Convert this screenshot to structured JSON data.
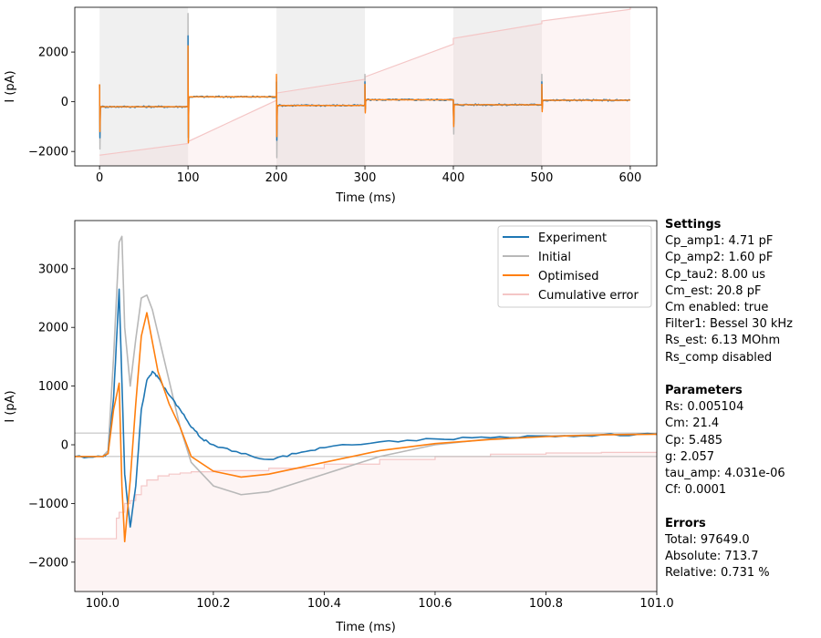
{
  "colors": {
    "experiment": "#1f77b4",
    "initial": "#b8b8b8",
    "optimised": "#ff7f0e",
    "error": "#f4c6c6",
    "shade": "#e6e6e6"
  },
  "top_chart": {
    "xlabel": "Time (ms)",
    "ylabel": "I (pA)",
    "xlim": [
      -28,
      630
    ],
    "ylim": [
      -2580,
      3800
    ],
    "xticks": [
      "0",
      "100",
      "200",
      "300",
      "400",
      "500",
      "600"
    ],
    "yticks": [
      "−2000",
      "0",
      "2000"
    ]
  },
  "bottom_chart": {
    "xlabel": "Time (ms)",
    "ylabel": "I (pA)",
    "xlim": [
      99.95,
      101.0
    ],
    "ylim": [
      -2500,
      3820
    ],
    "xticks": [
      "100.0",
      "100.2",
      "100.4",
      "100.6",
      "100.8",
      "101.0"
    ],
    "yticks": [
      "−2000",
      "−1000",
      "0",
      "1000",
      "2000",
      "3000"
    ],
    "legend": [
      "Experiment",
      "Initial",
      "Optimised",
      "Cumulative error"
    ]
  },
  "info": {
    "settings_title": "Settings",
    "settings": [
      "Cp_amp1: 4.71 pF",
      "Cp_amp2: 1.60 pF",
      "Cp_tau2: 8.00 us",
      "Cm_est: 20.8 pF",
      "Cm enabled: true",
      "Filter1: Bessel 30 kHz",
      "Rs_est: 6.13 MOhm",
      "Rs_comp disabled"
    ],
    "parameters_title": "Parameters",
    "parameters": [
      "Rs: 0.005104",
      "Cm: 21.4",
      "Cp: 5.485",
      "g: 2.057",
      "tau_amp: 4.031e-06",
      "Cf: 0.0001"
    ],
    "errors_title": "Errors",
    "errors": [
      "Total: 97649.0",
      "Absolute: 713.7",
      "Relative: 0.731 %"
    ]
  },
  "chart_data": [
    {
      "type": "line",
      "x_unit": "ms",
      "y_unit": "pA",
      "shaded_intervals": [
        [
          0,
          100
        ],
        [
          200,
          300
        ],
        [
          400,
          500
        ]
      ],
      "steps": [
        {
          "t0": 0,
          "t1": 100,
          "level": -200
        },
        {
          "t0": 100,
          "t1": 200,
          "level": 200
        },
        {
          "t0": 200,
          "t1": 300,
          "level": -150
        },
        {
          "t0": 300,
          "t1": 400,
          "level": 80
        },
        {
          "t0": 400,
          "t1": 500,
          "level": -120
        },
        {
          "t0": 500,
          "t1": 600,
          "level": 60
        }
      ],
      "transients": [
        {
          "t": 0,
          "experiment": [
            700,
            -1450
          ],
          "initial": [
            700,
            -1900
          ],
          "optimised": [
            700,
            -1200
          ]
        },
        {
          "t": 100,
          "experiment": [
            2650,
            -1450
          ],
          "initial": [
            3550,
            -1600
          ],
          "optimised": [
            2250,
            -1650
          ]
        },
        {
          "t": 200,
          "experiment": [
            800,
            -1550
          ],
          "initial": [
            1000,
            -2250
          ],
          "optimised": [
            1100,
            -1400
          ]
        },
        {
          "t": 300,
          "experiment": [
            800,
            -300
          ],
          "initial": [
            1100,
            -400
          ],
          "optimised": [
            700,
            -450
          ]
        },
        {
          "t": 400,
          "experiment": [
            -300,
            -900
          ],
          "initial": [
            -300,
            -1300
          ],
          "optimised": [
            -300,
            -1000
          ]
        },
        {
          "t": 500,
          "experiment": [
            800,
            -300
          ],
          "initial": [
            1100,
            -300
          ],
          "optimised": [
            700,
            -400
          ]
        }
      ],
      "cumulative_error": [
        [
          0,
          -2150
        ],
        [
          100,
          -1600
        ],
        [
          200,
          350
        ],
        [
          300,
          1000
        ],
        [
          400,
          2550
        ],
        [
          500,
          3250
        ],
        [
          600,
          3800
        ]
      ]
    },
    {
      "type": "line",
      "x_unit": "ms",
      "y_unit": "pA",
      "hlines": [
        200,
        -200
      ],
      "series": [
        {
          "name": "Experiment",
          "x": [
            99.95,
            100.0,
            100.01,
            100.02,
            100.03,
            100.04,
            100.05,
            100.06,
            100.07,
            100.08,
            100.09,
            100.1,
            100.12,
            100.14,
            100.16,
            100.18,
            100.2,
            100.25,
            100.3,
            100.35,
            100.4,
            100.5,
            100.6,
            100.7,
            100.8,
            100.9,
            101.0
          ],
          "y": [
            -200,
            -200,
            -150,
            800,
            2650,
            -500,
            -1400,
            -700,
            600,
            1100,
            1250,
            1150,
            850,
            600,
            300,
            100,
            0,
            -150,
            -250,
            -150,
            -50,
            50,
            100,
            120,
            150,
            170,
            180
          ]
        },
        {
          "name": "Initial",
          "x": [
            99.95,
            100.0,
            100.01,
            100.02,
            100.03,
            100.035,
            100.04,
            100.05,
            100.06,
            100.07,
            100.08,
            100.09,
            100.1,
            100.12,
            100.14,
            100.16,
            100.2,
            100.25,
            100.3,
            100.4,
            100.5,
            100.6,
            100.7,
            100.8,
            100.9,
            101.0
          ],
          "y": [
            -200,
            -200,
            -100,
            1500,
            3450,
            3550,
            2000,
            1000,
            1800,
            2500,
            2550,
            2300,
            1900,
            1100,
            300,
            -300,
            -700,
            -850,
            -800,
            -500,
            -200,
            0,
            100,
            150,
            170,
            190
          ]
        },
        {
          "name": "Optimised",
          "x": [
            99.95,
            100.0,
            100.01,
            100.02,
            100.03,
            100.035,
            100.04,
            100.05,
            100.06,
            100.07,
            100.08,
            100.09,
            100.1,
            100.12,
            100.14,
            100.16,
            100.2,
            100.25,
            100.3,
            100.4,
            100.5,
            100.6,
            100.7,
            100.8,
            100.9,
            101.0
          ],
          "y": [
            -200,
            -200,
            -150,
            600,
            1050,
            -700,
            -1650,
            -600,
            700,
            1850,
            2250,
            1750,
            1250,
            700,
            300,
            -200,
            -450,
            -550,
            -500,
            -300,
            -100,
            20,
            90,
            140,
            170,
            180
          ]
        },
        {
          "name": "Cumulative error",
          "x": [
            99.95,
            100.0,
            100.01,
            100.02,
            100.025,
            100.03,
            100.04,
            100.05,
            100.06,
            100.07,
            100.08,
            100.1,
            100.12,
            100.14,
            100.16,
            100.2,
            100.3,
            100.4,
            100.5,
            100.6,
            100.7,
            100.8,
            100.9,
            101.0
          ],
          "y": [
            -1600,
            -1600,
            -1600,
            -1600,
            -1250,
            -1150,
            -1000,
            -950,
            -850,
            -700,
            -600,
            -530,
            -500,
            -480,
            -460,
            -440,
            -400,
            -330,
            -250,
            -200,
            -160,
            -140,
            -130,
            -120
          ]
        }
      ]
    }
  ]
}
